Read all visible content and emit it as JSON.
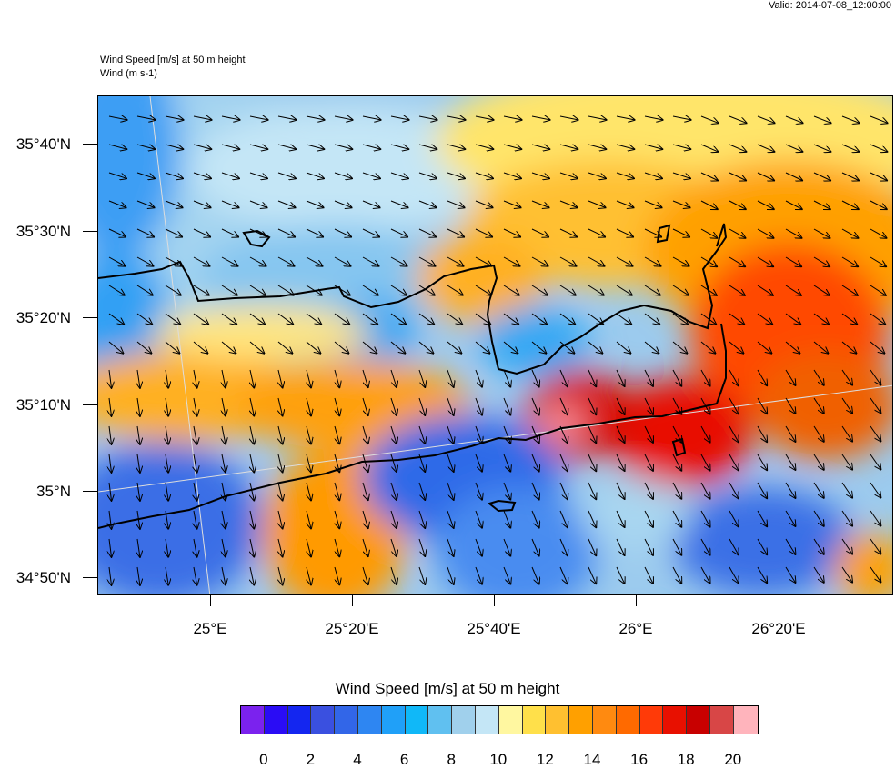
{
  "header": {
    "valid": "Valid: 2014-07-08_12:00:00",
    "title_line1": "Wind Speed [m/s] at 50 m height",
    "title_line2": "Wind   (m s-1)"
  },
  "map": {
    "lat_labels": [
      "35°40'N",
      "35°30'N",
      "35°20'N",
      "35°10'N",
      "35°N",
      "34°50'N"
    ],
    "lon_labels": [
      "25°E",
      "25°20'E",
      "25°40'E",
      "26°E",
      "26°20'E"
    ]
  },
  "colorbar": {
    "title": "Wind Speed [m/s] at 50 m height",
    "colors": [
      "#7b22ee",
      "#2a0cf5",
      "#1426f0",
      "#3a50e0",
      "#3266e8",
      "#2e86f2",
      "#20a0f8",
      "#10b8f8",
      "#60c0f0",
      "#a0d0ec",
      "#c4e6f6",
      "#fff7a0",
      "#ffe04a",
      "#ffc030",
      "#ffa000",
      "#ff8a10",
      "#ff6a00",
      "#ff3a08",
      "#e81000",
      "#c80000",
      "#d84646",
      "#ffb4bc"
    ],
    "labels": [
      "0",
      "2",
      "4",
      "6",
      "8",
      "10",
      "12",
      "14",
      "16",
      "18",
      "20"
    ]
  }
}
